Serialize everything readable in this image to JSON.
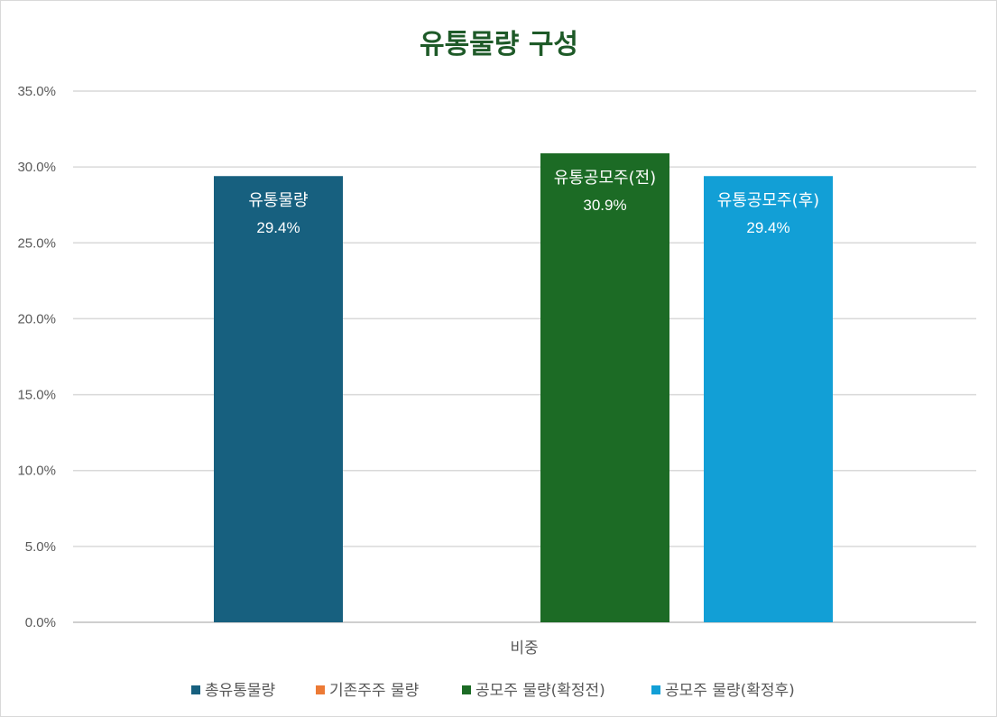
{
  "chart_data": {
    "type": "bar",
    "title": "유통물량 구성",
    "categories": [
      "비중"
    ],
    "ylim": [
      0,
      35
    ],
    "y_ticks": [
      "0.0%",
      "5.0%",
      "10.0%",
      "15.0%",
      "20.0%",
      "25.0%",
      "30.0%",
      "35.0%"
    ],
    "y_tick_values": [
      0,
      5,
      10,
      15,
      20,
      25,
      30,
      35
    ],
    "grid": true,
    "legend_position": "bottom",
    "series": [
      {
        "name": "총유통물량",
        "color": "#17607f",
        "values": [
          29.4
        ],
        "label_name": "유통물량",
        "label_value": "29.4%"
      },
      {
        "name": "기존주주 물량",
        "color": "#ec7a35",
        "values": [
          null
        ],
        "label_name": "",
        "label_value": ""
      },
      {
        "name": "공모주 물량(확정전)",
        "color": "#1c6b25",
        "values": [
          30.9
        ],
        "label_name": "유통공모주(전)",
        "label_value": "30.9%"
      },
      {
        "name": "공모주 물량(확정후)",
        "color": "#129fd6",
        "values": [
          29.4
        ],
        "label_name": "유통공모주(후)",
        "label_value": "29.4%"
      }
    ]
  }
}
